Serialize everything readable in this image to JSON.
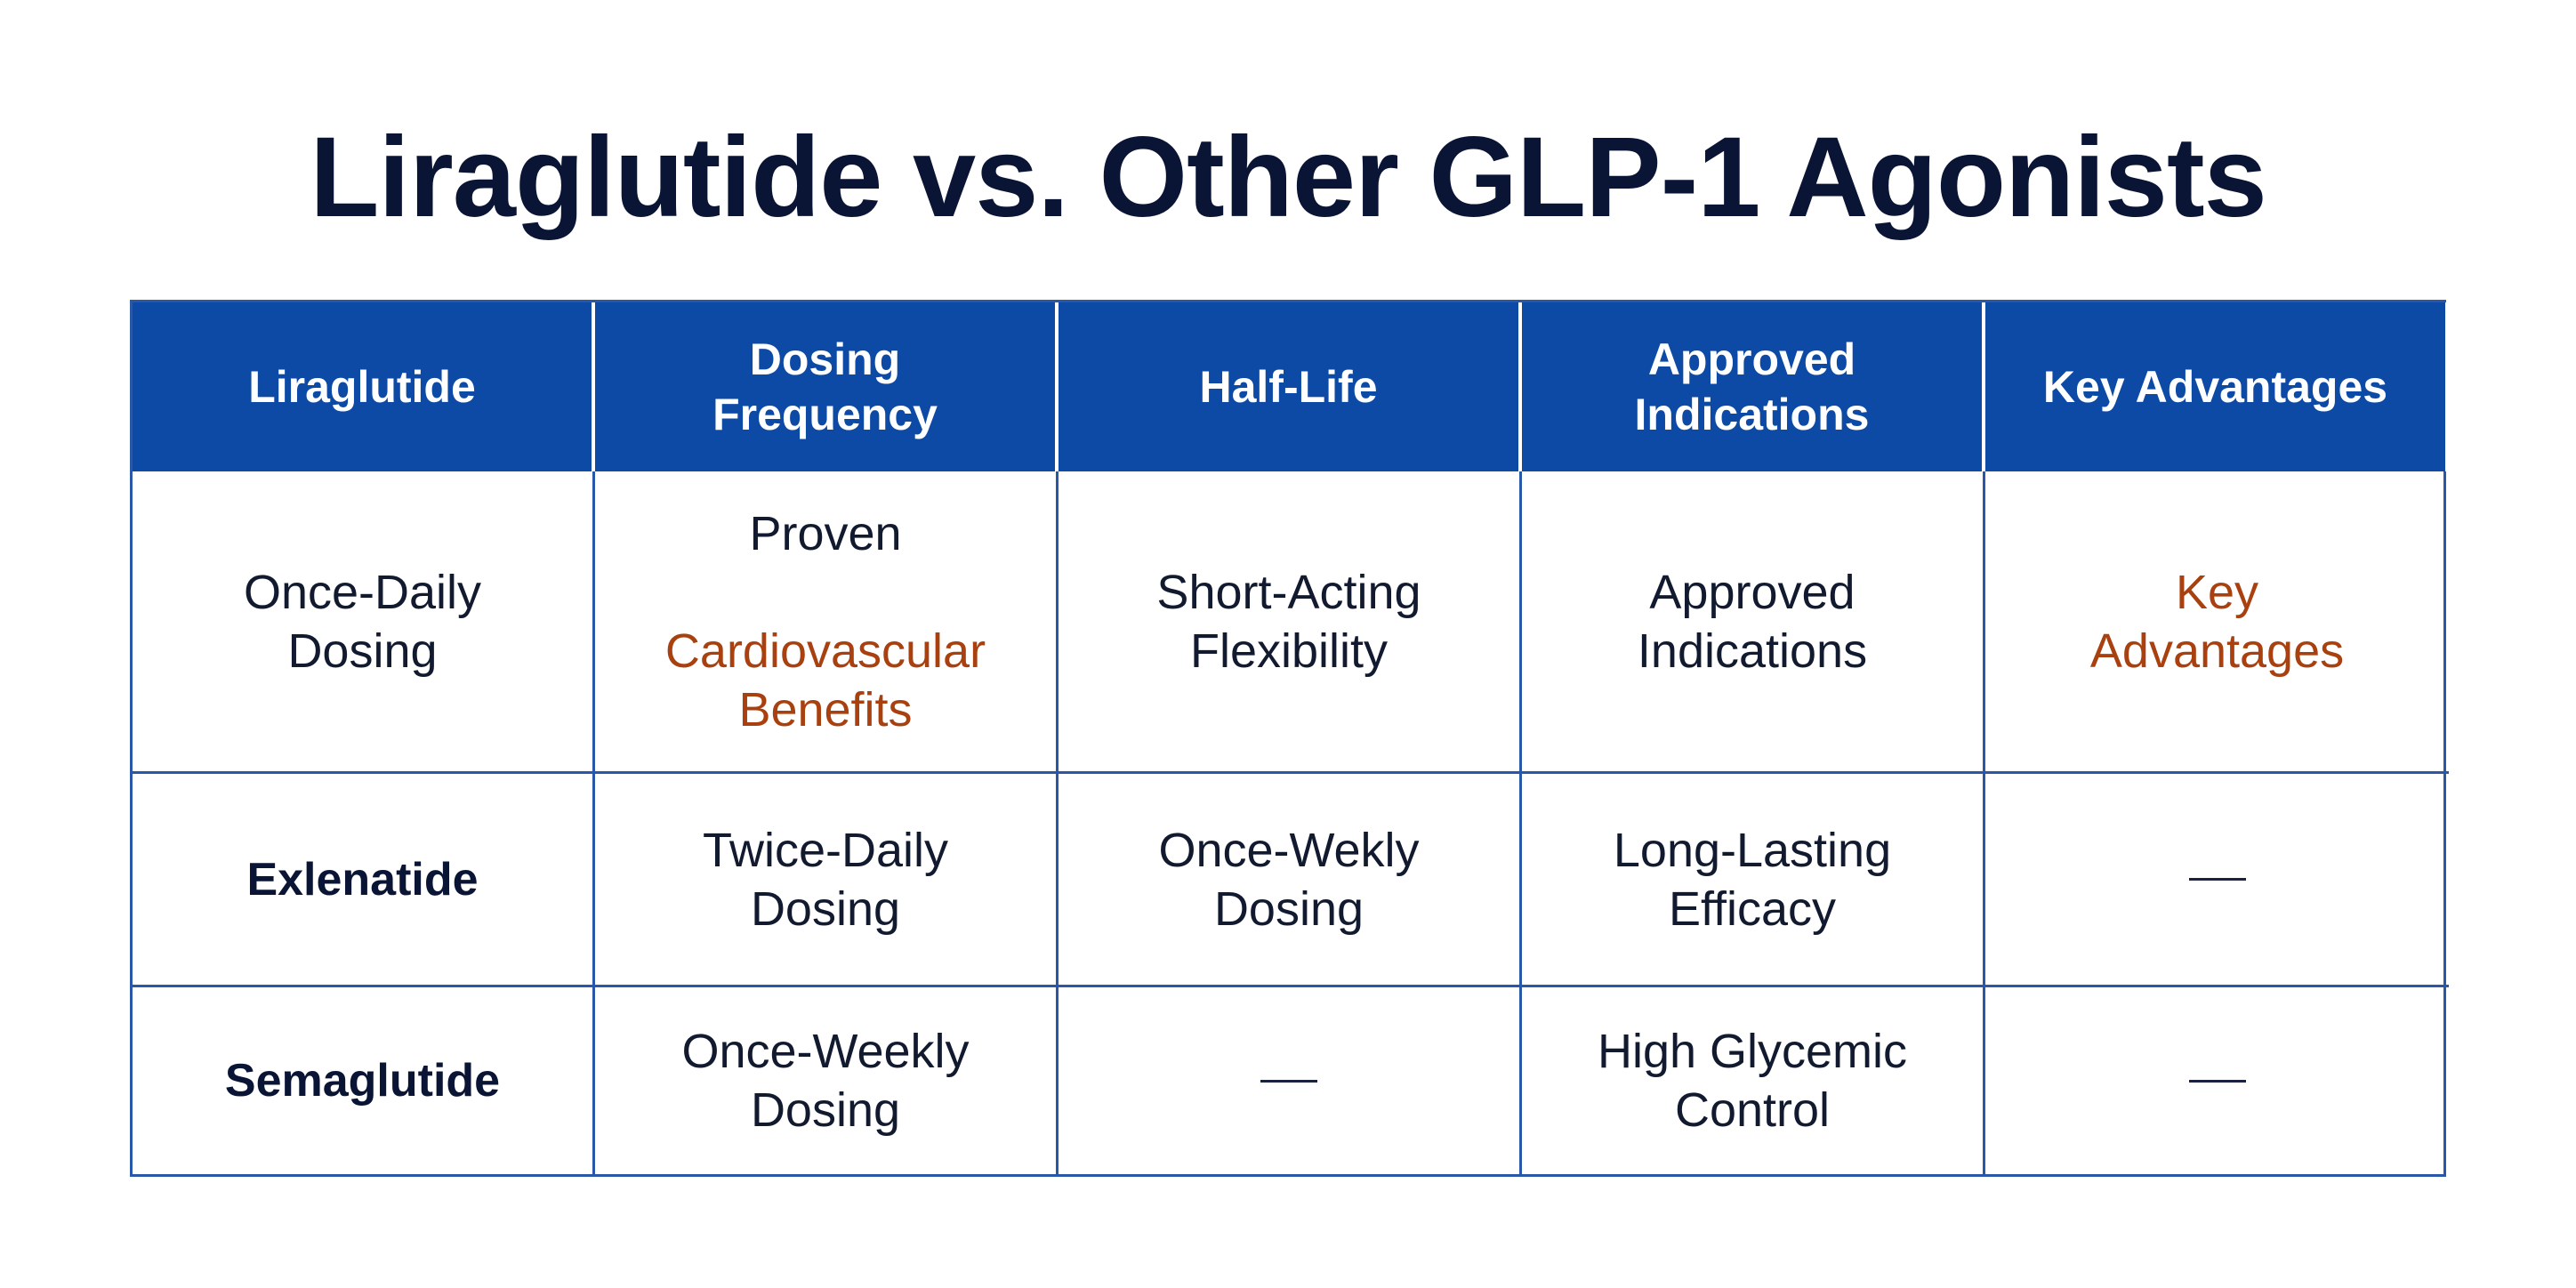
{
  "title": "Liraglutide vs. Other GLP-1 Agonists",
  "colors": {
    "header_bg": "#0d4aa6",
    "header_text": "#ffffff",
    "border": "#2a58a8",
    "accent_text": "#a8410f",
    "body_text": "#121a30"
  },
  "table": {
    "headers": [
      "Liraglutide",
      "Dosing\nFrequency",
      "Half-Life",
      "Approved\nIndications",
      "Key Advantages"
    ],
    "rows": [
      {
        "row_label": "Once-Daily\nDosing",
        "cells": [
          {
            "line1": "Proven",
            "accent": "Cardiovascular\nBenefits"
          },
          {
            "text": "Short-Acting\nFlexibility"
          },
          {
            "text": "Approved\nIndications"
          },
          {
            "accent": "Key\nAdvantages"
          }
        ]
      },
      {
        "row_label": "Exlenatide",
        "cells": [
          {
            "text": "Twice-Daily\nDosing"
          },
          {
            "text": "Once-Wekly\nDosing"
          },
          {
            "text": "Long-Lasting\nEfficacy"
          },
          {
            "dash": true
          }
        ]
      },
      {
        "row_label": "Semaglutide",
        "cells": [
          {
            "text": "Once-Weekly\nDosing"
          },
          {
            "dash": true
          },
          {
            "text": "High Glycemic\nControl"
          },
          {
            "dash": true
          }
        ]
      }
    ]
  }
}
